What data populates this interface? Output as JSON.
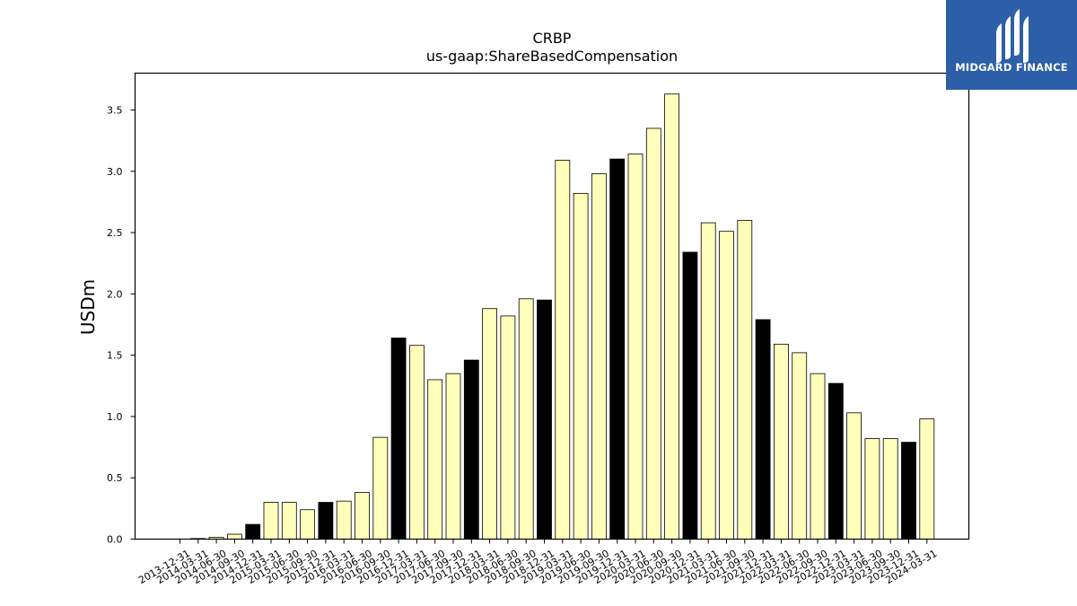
{
  "chart_data": {
    "type": "bar",
    "title": "CRBP",
    "subtitle": "us-gaap:ShareBasedCompensation",
    "xlabel": "",
    "ylabel": "USDm",
    "ylim": [
      0,
      3.8
    ],
    "yticks": [
      "0.0",
      "0.5",
      "1.0",
      "1.5",
      "2.0",
      "2.5",
      "3.0",
      "3.5"
    ],
    "grid": false,
    "legend": "none",
    "colors": {
      "quarter": "#ffffbb",
      "annual": "#000000",
      "edge": "#000000"
    },
    "categories": [
      "2013-12-31",
      "2014-03-31",
      "2014-06-30",
      "2014-09-30",
      "2014-12-31",
      "2015-03-31",
      "2015-06-30",
      "2015-09-30",
      "2015-12-31",
      "2016-03-31",
      "2016-06-30",
      "2016-09-30",
      "2016-12-31",
      "2017-03-31",
      "2017-06-30",
      "2017-09-30",
      "2017-12-31",
      "2018-03-31",
      "2018-06-30",
      "2018-09-30",
      "2018-12-31",
      "2019-03-31",
      "2019-06-30",
      "2019-09-30",
      "2019-12-31",
      "2020-03-31",
      "2020-06-30",
      "2020-09-30",
      "2020-12-31",
      "2021-03-31",
      "2021-06-30",
      "2021-09-30",
      "2021-12-31",
      "2022-03-31",
      "2022-06-30",
      "2022-09-30",
      "2022-12-31",
      "2023-03-31",
      "2023-06-30",
      "2023-09-30",
      "2023-12-31",
      "2024-03-31"
    ],
    "values": [
      0.0,
      0.005,
      0.015,
      0.04,
      0.12,
      0.3,
      0.3,
      0.24,
      0.3,
      0.31,
      0.38,
      0.83,
      1.64,
      1.58,
      1.3,
      1.35,
      1.46,
      1.88,
      1.82,
      1.96,
      1.95,
      3.09,
      2.82,
      2.98,
      3.1,
      3.14,
      3.35,
      3.63,
      2.34,
      2.58,
      2.51,
      2.6,
      1.79,
      1.59,
      1.52,
      1.35,
      1.27,
      1.03,
      0.82,
      0.82,
      0.79,
      0.98
    ],
    "annual_flags": [
      true,
      false,
      false,
      false,
      true,
      false,
      false,
      false,
      true,
      false,
      false,
      false,
      true,
      false,
      false,
      false,
      true,
      false,
      false,
      false,
      true,
      false,
      false,
      false,
      true,
      false,
      false,
      false,
      true,
      false,
      false,
      false,
      true,
      false,
      false,
      false,
      true,
      false,
      false,
      false,
      true,
      false
    ]
  },
  "logo": {
    "text": "MIDGARD FINANCE",
    "bg": "#2d5fa8"
  }
}
